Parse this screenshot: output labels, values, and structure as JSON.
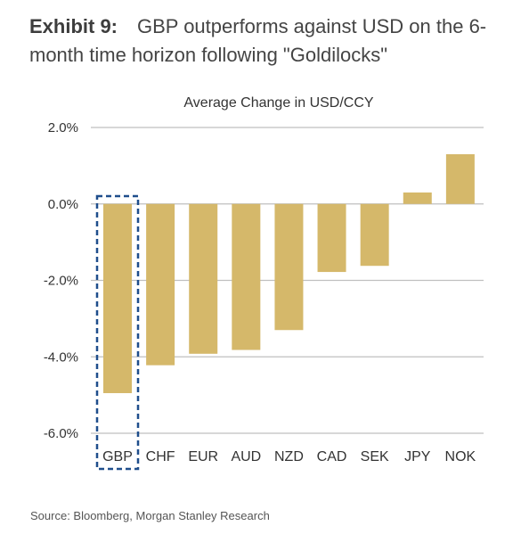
{
  "header": {
    "exhibit_label": "Exhibit 9:",
    "exhibit_text": "GBP outperforms against USD on the 6-month time horizon following \"Goldilocks\""
  },
  "chart_data": {
    "type": "bar",
    "title": "Average Change in USD/CCY",
    "xlabel": "",
    "ylabel": "",
    "categories": [
      "GBP",
      "CHF",
      "EUR",
      "AUD",
      "NZD",
      "CAD",
      "SEK",
      "JPY",
      "NOK"
    ],
    "values": [
      -4.95,
      -4.22,
      -3.92,
      -3.82,
      -3.3,
      -1.78,
      -1.62,
      0.3,
      1.3
    ],
    "ylim": [
      -6.0,
      2.0
    ],
    "yticks": [
      2.0,
      0.0,
      -2.0,
      -4.0,
      -6.0
    ],
    "ytick_labels": [
      "2.0%",
      "0.0%",
      "-2.0%",
      "-4.0%",
      "-6.0%"
    ],
    "grid": true,
    "highlight_category": "GBP",
    "colors": {
      "bar": "#d5b86a",
      "grid": "#bfbfbf",
      "highlight_border": "#1f4e8c",
      "text": "#333333"
    }
  },
  "footer": {
    "source": "Source: Bloomberg, Morgan Stanley Research"
  }
}
